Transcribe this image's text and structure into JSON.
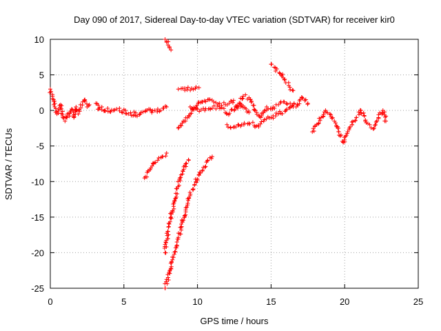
{
  "chart_data": {
    "type": "scatter",
    "title": "Day 090 of 2017, Sidereal Day-to-day VTEC variation (SDTVAR) for receiver kir0",
    "xlabel": "GPS time / hours",
    "ylabel": "SDTVAR / TECUs",
    "xlim": [
      0,
      25
    ],
    "ylim": [
      -25,
      10
    ],
    "xticks": [
      0,
      5,
      10,
      15,
      20,
      25
    ],
    "yticks": [
      10,
      5,
      0,
      -5,
      -10,
      -15,
      -20,
      -25
    ],
    "grid": true,
    "marker": "plus",
    "color": "#ff0000",
    "segments": [
      {
        "x": [
          0.0,
          0.15,
          0.3,
          0.45,
          0.55,
          0.7,
          0.85,
          1.0,
          1.15,
          1.3,
          1.45,
          1.6,
          1.75,
          1.9,
          2.05,
          2.2,
          2.35,
          2.5,
          2.65
        ],
        "y": [
          3.0,
          2.0,
          0.5,
          -0.5,
          0.2,
          0.8,
          -1.0,
          -1.5,
          -0.5,
          -0.8,
          0.2,
          -1.0,
          0.5,
          -0.5,
          0.8,
          1.2,
          1.5,
          0.5,
          0.8
        ]
      },
      {
        "x": [
          3.1,
          3.3,
          3.5,
          3.7,
          3.9,
          4.1,
          4.3,
          4.5,
          4.7,
          4.9,
          5.1,
          5.3,
          5.5,
          5.7,
          5.9,
          6.1,
          6.3,
          6.5,
          6.7,
          6.9,
          7.1,
          7.3,
          7.5,
          7.7,
          7.9
        ],
        "y": [
          1.0,
          0.2,
          0.5,
          0.0,
          0.3,
          -0.2,
          0.0,
          0.2,
          0.3,
          -0.3,
          0.0,
          -0.5,
          -0.7,
          -0.2,
          -0.8,
          -0.5,
          -0.2,
          0.0,
          0.2,
          -0.3,
          0.0,
          0.2,
          0.0,
          0.3,
          0.5
        ]
      },
      {
        "x": [
          6.4,
          6.7,
          7.0,
          7.3,
          7.6,
          7.9
        ],
        "y": [
          -9.5,
          -8.5,
          -7.5,
          -7.0,
          -6.5,
          -6.0
        ]
      },
      {
        "x": [
          7.8,
          7.9,
          8.0,
          8.1,
          8.2
        ],
        "y": [
          10.0,
          9.6,
          9.2,
          8.8,
          8.5
        ]
      },
      {
        "x": [
          7.8,
          8.0,
          8.2,
          8.4,
          8.6,
          8.8,
          9.0,
          9.2,
          9.4
        ],
        "y": [
          -20.0,
          -17.0,
          -15.0,
          -13.0,
          -11.0,
          -9.5,
          -8.5,
          -7.5,
          -7.0
        ]
      },
      {
        "x": [
          7.8,
          8.0,
          8.3,
          8.6,
          8.9,
          9.2,
          9.5,
          9.8,
          10.1,
          10.4,
          10.7,
          11.0
        ],
        "y": [
          -25.0,
          -23.5,
          -21.0,
          -18.5,
          -16.5,
          -14.0,
          -12.0,
          -10.5,
          -9.0,
          -8.0,
          -7.0,
          -6.5
        ]
      },
      {
        "x": [
          8.7,
          9.0,
          9.3,
          9.6,
          9.9,
          10.1
        ],
        "y": [
          3.0,
          3.1,
          2.9,
          3.1,
          3.3,
          3.2
        ]
      },
      {
        "x": [
          8.7,
          9.1,
          9.5,
          9.9,
          10.3,
          10.7,
          11.1,
          11.5,
          11.9,
          12.3,
          12.7,
          13.1,
          13.5,
          13.9,
          14.3,
          14.7,
          15.1,
          15.5,
          15.9,
          16.3,
          16.7,
          17.1,
          17.5
        ],
        "y": [
          -2.5,
          -1.5,
          -0.5,
          0.5,
          1.2,
          1.5,
          1.2,
          1.0,
          0.8,
          1.3,
          0.5,
          2.0,
          1.8,
          0.0,
          -1.0,
          0.5,
          0.2,
          0.8,
          1.2,
          1.0,
          0.5,
          1.8,
          1.0
        ]
      },
      {
        "x": [
          9.5,
          10.0,
          10.5,
          11.0,
          11.5,
          12.0,
          12.5,
          13.0,
          13.5
        ],
        "y": [
          0.5,
          0.2,
          0.0,
          0.3,
          0.5,
          -0.5,
          0.0,
          0.8,
          -0.3
        ]
      },
      {
        "x": [
          12.0,
          12.5,
          13.0,
          13.5,
          14.0,
          14.5,
          15.0,
          15.5,
          16.0,
          16.5
        ],
        "y": [
          -2.0,
          -2.3,
          -2.0,
          -1.8,
          -2.2,
          -1.5,
          -1.0,
          -0.5,
          0.0,
          0.5
        ]
      },
      {
        "x": [
          15.0,
          15.3,
          15.6,
          15.9,
          16.2,
          16.5
        ],
        "y": [
          6.5,
          6.0,
          5.2,
          4.3,
          3.5,
          2.8
        ]
      },
      {
        "x": [
          17.8,
          18.1,
          18.4,
          18.7,
          19.0,
          19.3,
          19.6,
          19.9,
          20.2,
          20.5,
          20.8,
          21.1,
          21.4,
          21.7,
          22.0,
          22.3,
          22.6,
          22.8
        ],
        "y": [
          -3.0,
          -2.0,
          -1.0,
          0.0,
          -0.5,
          -1.5,
          -3.0,
          -4.5,
          -3.0,
          -2.0,
          -1.0,
          0.0,
          -1.5,
          -2.0,
          -2.5,
          -1.0,
          0.0,
          -1.5
        ]
      }
    ]
  }
}
